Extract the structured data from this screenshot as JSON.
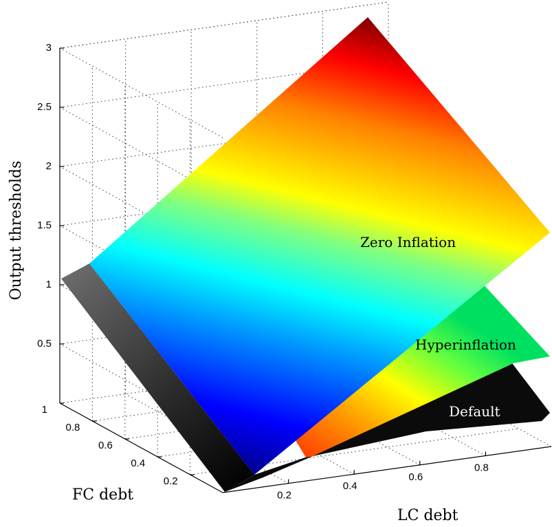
{
  "chart_data": {
    "type": "surface",
    "xlabel": "LC debt",
    "ylabel": "FC debt",
    "zlabel": "Output thresholds",
    "x_ticks": [
      "0.2",
      "0.4",
      "0.6",
      "0.8"
    ],
    "y_ticks": [
      "0.2",
      "0.4",
      "0.6",
      "0.8",
      "1"
    ],
    "z_ticks": [
      "0.5",
      "1",
      "1.5",
      "2",
      "2.5",
      "3"
    ],
    "xlim": [
      0,
      1
    ],
    "ylim": [
      0,
      1
    ],
    "zlim": [
      0,
      3
    ],
    "grid": true,
    "colormap": "jet",
    "surfaces": [
      {
        "name": "Default",
        "color": "#0a0a0a"
      },
      {
        "name": "Hyperinflation",
        "color": "jet"
      },
      {
        "name": "Zero Inflation",
        "color": "jet"
      }
    ],
    "annotations": [
      "Zero Inflation",
      "Hyperinflation",
      "Default"
    ]
  }
}
